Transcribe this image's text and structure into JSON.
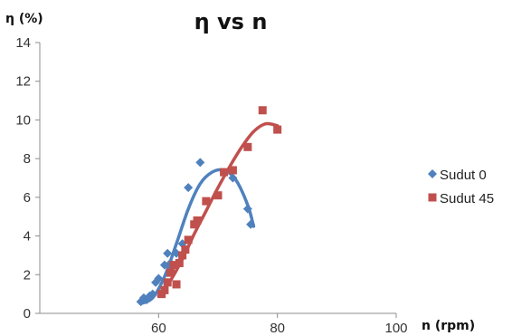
{
  "chart_data": {
    "type": "scatter",
    "title": "η vs n",
    "xlabel": "n (rpm)",
    "ylabel": "η (%)",
    "xlim": [
      40,
      100
    ],
    "ylim": [
      0,
      14
    ],
    "x_ticks": [
      "60",
      "80",
      "100"
    ],
    "y_ticks": [
      "0",
      "2",
      "4",
      "6",
      "8",
      "10",
      "12",
      "14"
    ],
    "grid": false,
    "legend_position": "right",
    "series": [
      {
        "name": "Sudut 0",
        "color": "#4f81bd",
        "marker": "diamond",
        "points": [
          [
            57,
            0.6
          ],
          [
            57.5,
            0.8
          ],
          [
            58,
            0.7
          ],
          [
            58.5,
            0.9
          ],
          [
            59,
            1.0
          ],
          [
            59.5,
            1.6
          ],
          [
            60,
            1.8
          ],
          [
            61,
            2.5
          ],
          [
            61.5,
            3.1
          ],
          [
            62,
            2.6
          ],
          [
            63,
            3.1
          ],
          [
            64,
            3.6
          ],
          [
            65,
            6.5
          ],
          [
            67,
            7.8
          ],
          [
            72.5,
            7.0
          ],
          [
            75,
            5.4
          ],
          [
            75.5,
            4.6
          ]
        ],
        "trendline": [
          [
            57,
            0.5
          ],
          [
            59,
            0.8
          ],
          [
            61,
            1.9
          ],
          [
            63,
            3.6
          ],
          [
            65,
            5.4
          ],
          [
            67,
            6.7
          ],
          [
            69,
            7.3
          ],
          [
            71,
            7.4
          ],
          [
            73,
            6.9
          ],
          [
            75,
            5.6
          ],
          [
            76,
            4.5
          ]
        ]
      },
      {
        "name": "Sudut 45",
        "color": "#c0504d",
        "marker": "square",
        "points": [
          [
            60.5,
            1.0
          ],
          [
            61,
            1.2
          ],
          [
            61.5,
            1.6
          ],
          [
            62,
            2.1
          ],
          [
            62.5,
            2.5
          ],
          [
            63,
            1.5
          ],
          [
            63.5,
            2.6
          ],
          [
            64,
            3.0
          ],
          [
            64.5,
            3.3
          ],
          [
            65,
            3.8
          ],
          [
            66,
            4.6
          ],
          [
            66.5,
            4.8
          ],
          [
            68,
            5.8
          ],
          [
            70,
            6.1
          ],
          [
            71,
            7.3
          ],
          [
            72.5,
            7.4
          ],
          [
            75,
            8.6
          ],
          [
            77.5,
            10.5
          ],
          [
            80,
            9.5
          ]
        ],
        "trendline": [
          [
            60,
            0.9
          ],
          [
            62,
            1.7
          ],
          [
            64,
            2.8
          ],
          [
            66,
            4.1
          ],
          [
            68,
            5.3
          ],
          [
            70,
            6.5
          ],
          [
            72,
            7.6
          ],
          [
            74,
            8.6
          ],
          [
            76,
            9.4
          ],
          [
            78,
            9.8
          ],
          [
            80,
            9.7
          ]
        ]
      }
    ]
  }
}
